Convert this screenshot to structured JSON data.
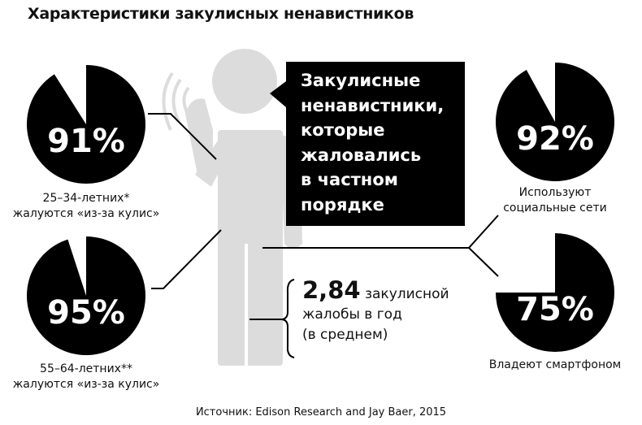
{
  "title": "Характеристики закулисных ненавистников",
  "callout": [
    "Закулисные",
    "ненавистники,",
    "которые",
    "жаловались",
    "в частном",
    "порядке"
  ],
  "stat": {
    "value": "2,84",
    "text1": "закулисной",
    "text2": "жалобы в год",
    "text3": "(в среднем)"
  },
  "source": "Источник: Edison Research and Jay Baer, 2015",
  "colors": {
    "pie": "#000000",
    "figure": "#dcdcdc",
    "text": "#111111"
  },
  "chart_data": [
    {
      "type": "pie",
      "value": 91,
      "label": "91%",
      "caption": [
        "25–34-летних*",
        "жалуются «из-за кулис»"
      ]
    },
    {
      "type": "pie",
      "value": 95,
      "label": "95%",
      "caption": [
        "55–64-летних**",
        "жалуются «из-за кулис»"
      ]
    },
    {
      "type": "pie",
      "value": 92,
      "label": "92%",
      "caption": [
        "Используют",
        "социальные сети"
      ]
    },
    {
      "type": "pie",
      "value": 75,
      "label": "75%",
      "caption": [
        "Владеют смартфоном"
      ]
    }
  ]
}
